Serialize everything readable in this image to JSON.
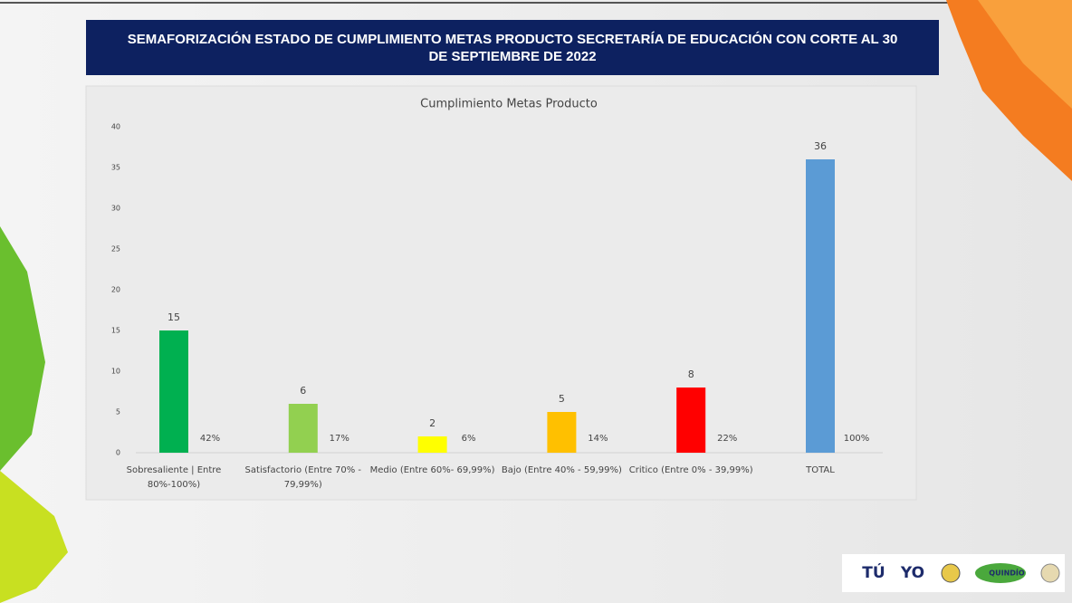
{
  "slide": {
    "title": "SEMAFORIZACIÓN  ESTADO DE CUMPLIMIENTO METAS PRODUCTO SECRETARÍA DE  EDUCACIÓN CON CORTE AL 30 DE SEPTIEMBRE DE 2022"
  },
  "logos": [
    "TÚ",
    "YO",
    "QUINDÍO"
  ],
  "chart_data": {
    "type": "bar",
    "title": "Cumplimiento Metas Producto",
    "categories": [
      "Sobresaliente  | Entre 80%-100%)",
      "Satisfactorio (Entre 70% - 79,99%)",
      "Medio (Entre 60%- 69,99%)",
      "Bajo (Entre 40% - 59,99%)",
      "Critico (Entre 0% - 39,99%)",
      "TOTAL"
    ],
    "values": [
      15,
      6,
      2,
      5,
      8,
      36
    ],
    "percent_labels": [
      "42%",
      "17%",
      "6%",
      "14%",
      "22%",
      "100%"
    ],
    "colors": [
      "#00b050",
      "#92d050",
      "#ffff00",
      "#ffc000",
      "#ff0000",
      "#5b9bd5"
    ],
    "ylim": [
      0,
      40
    ],
    "yticks": [
      0,
      5,
      10,
      15,
      20,
      25,
      30,
      35,
      40
    ],
    "grid": false
  }
}
